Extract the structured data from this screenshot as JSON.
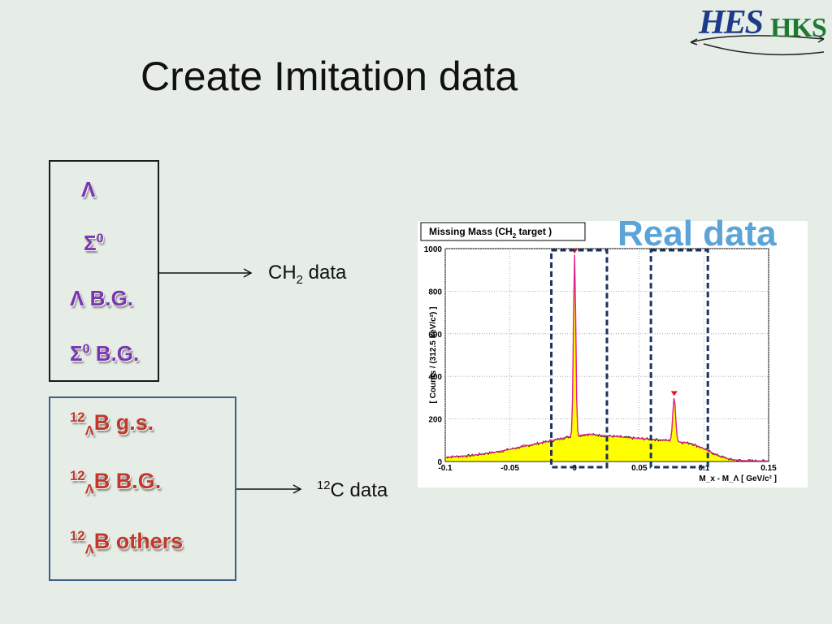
{
  "logo": {
    "part1": "HES",
    "part2": "HKS"
  },
  "title": "Create Imitation data",
  "ch2_group": {
    "items": [
      {
        "main": "Λ",
        "sup": "",
        "rest": ""
      },
      {
        "main": "Σ",
        "sup": "0",
        "rest": ""
      },
      {
        "main": "Λ B.G.",
        "sup": "",
        "rest": ""
      },
      {
        "main": "Σ",
        "sup": "0",
        "rest": " B.G."
      }
    ],
    "target": {
      "main": "CH",
      "sub": "2",
      "rest": " data"
    }
  },
  "c12_group": {
    "items": [
      {
        "sup": "12",
        "sub": "Λ",
        "rest": "B g.s."
      },
      {
        "sup": "12",
        "sub": "Λ",
        "rest": "B B.G."
      },
      {
        "sup": "12",
        "sub": "Λ",
        "rest": "B others"
      }
    ],
    "target": {
      "sup": "12",
      "rest": "C data"
    }
  },
  "real_label": "Real data",
  "chart_data": {
    "type": "histogram",
    "title": "Missing Mass (CH2 target )",
    "title_main": "Missing Mass (CH",
    "title_sub": "2",
    "title_rest": " target )",
    "xlabel": "M_x - M_Λ [ GeV/c² ]",
    "ylabel": "[ Counts / (312.5 keV/c²) ]",
    "xlim": [
      -0.1,
      0.15
    ],
    "ylim": [
      0,
      1000
    ],
    "x_ticks": [
      "-0.1",
      "-0.05",
      "0",
      "0.05",
      "0.1",
      "0.15"
    ],
    "y_ticks": [
      "0",
      "200",
      "400",
      "600",
      "800",
      "1000"
    ],
    "grid": true,
    "peaks": [
      {
        "x": 0.0,
        "y": 970
      },
      {
        "x": 0.077,
        "y": 300
      }
    ],
    "background_shape": [
      [
        -0.1,
        20
      ],
      [
        -0.08,
        28
      ],
      [
        -0.06,
        45
      ],
      [
        -0.04,
        70
      ],
      [
        -0.02,
        95
      ],
      [
        -0.005,
        115
      ],
      [
        0.01,
        128
      ],
      [
        0.03,
        118
      ],
      [
        0.05,
        108
      ],
      [
        0.07,
        100
      ],
      [
        0.09,
        85
      ],
      [
        0.1,
        60
      ],
      [
        0.11,
        30
      ],
      [
        0.12,
        10
      ],
      [
        0.13,
        4
      ],
      [
        0.15,
        2
      ]
    ],
    "selection_boxes": [
      {
        "x_from": -0.018,
        "x_to": 0.025
      },
      {
        "x_from": 0.059,
        "x_to": 0.103
      }
    ],
    "colors": {
      "fill": "#ffff00",
      "edge": "#000000",
      "fit": "#e0208a",
      "marker": "#ee1111",
      "box": "#1a3360"
    }
  }
}
